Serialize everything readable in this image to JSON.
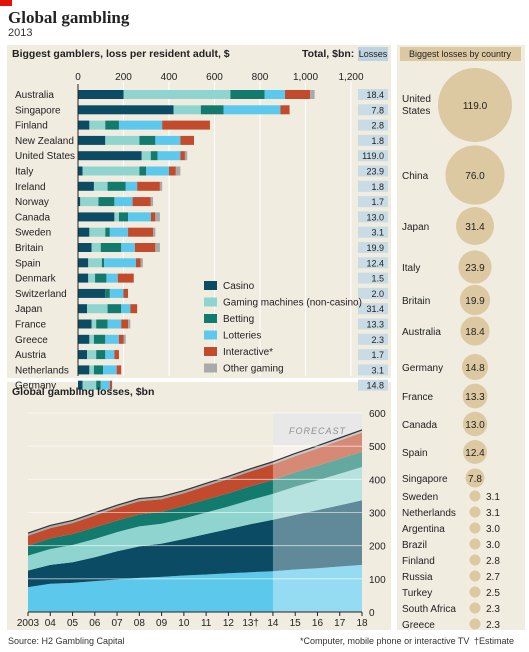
{
  "header": {
    "title": "Global gambling",
    "year": "2013"
  },
  "footer": {
    "source": "Source: H2 Gambling Capital",
    "footnote": "*Computer, mobile phone or interactive TV",
    "estimate": "†Estimate"
  },
  "colors": {
    "casino": "#0b4b63",
    "gaming": "#8fd4cf",
    "betting": "#127b6d",
    "lotteries": "#5cc8ec",
    "interactive": "#c14b2c",
    "other": "#a9a9a9",
    "bubble": "#dcc9a2",
    "panel": "#f1ece0"
  },
  "chart_data": [
    {
      "type": "bar",
      "title": "Biggest gamblers, loss per resident adult, $",
      "total_label": "Total, $bn:",
      "losses_label": "Losses",
      "xlim": [
        0,
        1200
      ],
      "x_ticks": [
        "0",
        "200",
        "400",
        "600",
        "800",
        "1,000",
        "1,200"
      ],
      "legend": [
        "Casino",
        "Gaming machines (non-casino)",
        "Betting",
        "Lotteries",
        "Interactive*",
        "Other gaming"
      ],
      "categories": [
        "Australia",
        "Singapore",
        "Finland",
        "New Zealand",
        "United States",
        "Italy",
        "Ireland",
        "Norway",
        "Canada",
        "Sweden",
        "Britain",
        "Spain",
        "Denmark",
        "Switzerland",
        "Japan",
        "France",
        "Greece",
        "Austria",
        "Netherlands",
        "Germany"
      ],
      "totals": [
        "18.4",
        "7.8",
        "2.8",
        "1.8",
        "119.0",
        "23.9",
        "1.8",
        "1.7",
        "13.0",
        "3.1",
        "19.9",
        "12.4",
        "1.5",
        "2.0",
        "31.4",
        "13.3",
        "2.3",
        "1.7",
        "3.1",
        "14.8"
      ],
      "series": [
        {
          "name": "Casino",
          "values": [
            200,
            420,
            50,
            120,
            280,
            20,
            70,
            10,
            160,
            50,
            60,
            45,
            45,
            120,
            40,
            60,
            50,
            40,
            50,
            20
          ]
        },
        {
          "name": "Gaming machines (non-casino)",
          "values": [
            470,
            120,
            70,
            150,
            40,
            250,
            60,
            80,
            20,
            70,
            40,
            60,
            30,
            0,
            90,
            20,
            20,
            40,
            20,
            60
          ]
        },
        {
          "name": "Betting",
          "values": [
            150,
            100,
            60,
            70,
            30,
            30,
            80,
            70,
            40,
            20,
            90,
            10,
            50,
            20,
            60,
            50,
            50,
            40,
            40,
            20
          ]
        },
        {
          "name": "Lotteries",
          "values": [
            90,
            250,
            190,
            110,
            100,
            100,
            50,
            80,
            100,
            80,
            60,
            140,
            50,
            60,
            40,
            60,
            60,
            40,
            60,
            40
          ]
        },
        {
          "name": "Interactive*",
          "values": [
            110,
            40,
            210,
            60,
            20,
            30,
            100,
            80,
            20,
            110,
            90,
            20,
            70,
            20,
            30,
            30,
            20,
            20,
            20,
            10
          ]
        },
        {
          "name": "Other gaming",
          "values": [
            20,
            0,
            0,
            0,
            10,
            20,
            10,
            10,
            20,
            10,
            20,
            10,
            0,
            0,
            0,
            10,
            10,
            0,
            0,
            0
          ]
        }
      ]
    },
    {
      "type": "area",
      "title": "Global gambling losses, $bn",
      "annotation": "FORECAST",
      "x": [
        "2003",
        "04",
        "05",
        "06",
        "07",
        "08",
        "09",
        "10",
        "11",
        "12",
        "13†",
        "14",
        "15",
        "16",
        "17",
        "18"
      ],
      "ylim": [
        0,
        600
      ],
      "y_ticks": [
        "0",
        "100",
        "200",
        "300",
        "400",
        "500",
        "600"
      ],
      "series": [
        {
          "name": "Lotteries",
          "values": [
            75,
            85,
            88,
            93,
            98,
            103,
            106,
            110,
            113,
            117,
            120,
            123,
            128,
            132,
            137,
            142
          ]
        },
        {
          "name": "Casino",
          "values": [
            50,
            57,
            62,
            72,
            85,
            95,
            100,
            110,
            122,
            133,
            145,
            155,
            165,
            175,
            185,
            195
          ]
        },
        {
          "name": "Gaming machines (non-casino)",
          "values": [
            45,
            48,
            52,
            55,
            58,
            60,
            60,
            62,
            65,
            68,
            73,
            78,
            85,
            90,
            95,
            100
          ]
        },
        {
          "name": "Betting",
          "values": [
            30,
            32,
            33,
            35,
            35,
            36,
            36,
            38,
            39,
            40,
            41,
            42,
            43,
            44,
            45,
            46
          ]
        },
        {
          "name": "Interactive*",
          "values": [
            30,
            31,
            33,
            36,
            38,
            40,
            38,
            38,
            41,
            43,
            45,
            47,
            49,
            52,
            55,
            58
          ]
        },
        {
          "name": "Other gaming",
          "values": [
            8,
            8,
            8,
            8,
            8,
            8,
            8,
            8,
            8,
            8,
            8,
            8,
            8,
            8,
            8,
            8
          ]
        }
      ]
    },
    {
      "type": "scatter",
      "title": "Biggest losses by country",
      "countries": [
        "United States",
        "China",
        "Japan",
        "Italy",
        "Britain",
        "Australia",
        "Germany",
        "France",
        "Canada",
        "Spain",
        "Singapore",
        "Sweden",
        "Netherlands",
        "Argentina",
        "Brazil",
        "Finland",
        "Russia",
        "Turkey",
        "South Africa",
        "Greece"
      ],
      "labels": [
        "United States",
        "China",
        "Japan",
        "Italy",
        "Britain",
        "Australia",
        "Germany",
        "France",
        "Canada",
        "Spain",
        "Singapore",
        "Sweden",
        "Netherlands",
        "Argentina",
        "Brazil",
        "Finland",
        "Russia",
        "Turkey",
        "South Africa",
        "Greece"
      ],
      "value_labels": [
        "119.0",
        "76.0",
        "31.4",
        "23.9",
        "19.9",
        "18.4",
        "14.8",
        "13.3",
        "13.0",
        "12.4",
        "7.8",
        "3.1",
        "3.1",
        "3.0",
        "3.0",
        "2.8",
        "2.7",
        "2.5",
        "2.3",
        "2.3"
      ],
      "values": [
        119.0,
        76.0,
        31.4,
        23.9,
        19.9,
        18.4,
        14.8,
        13.3,
        13.0,
        12.4,
        7.8,
        3.1,
        3.1,
        3.0,
        3.0,
        2.8,
        2.7,
        2.5,
        2.3,
        2.3
      ]
    }
  ]
}
